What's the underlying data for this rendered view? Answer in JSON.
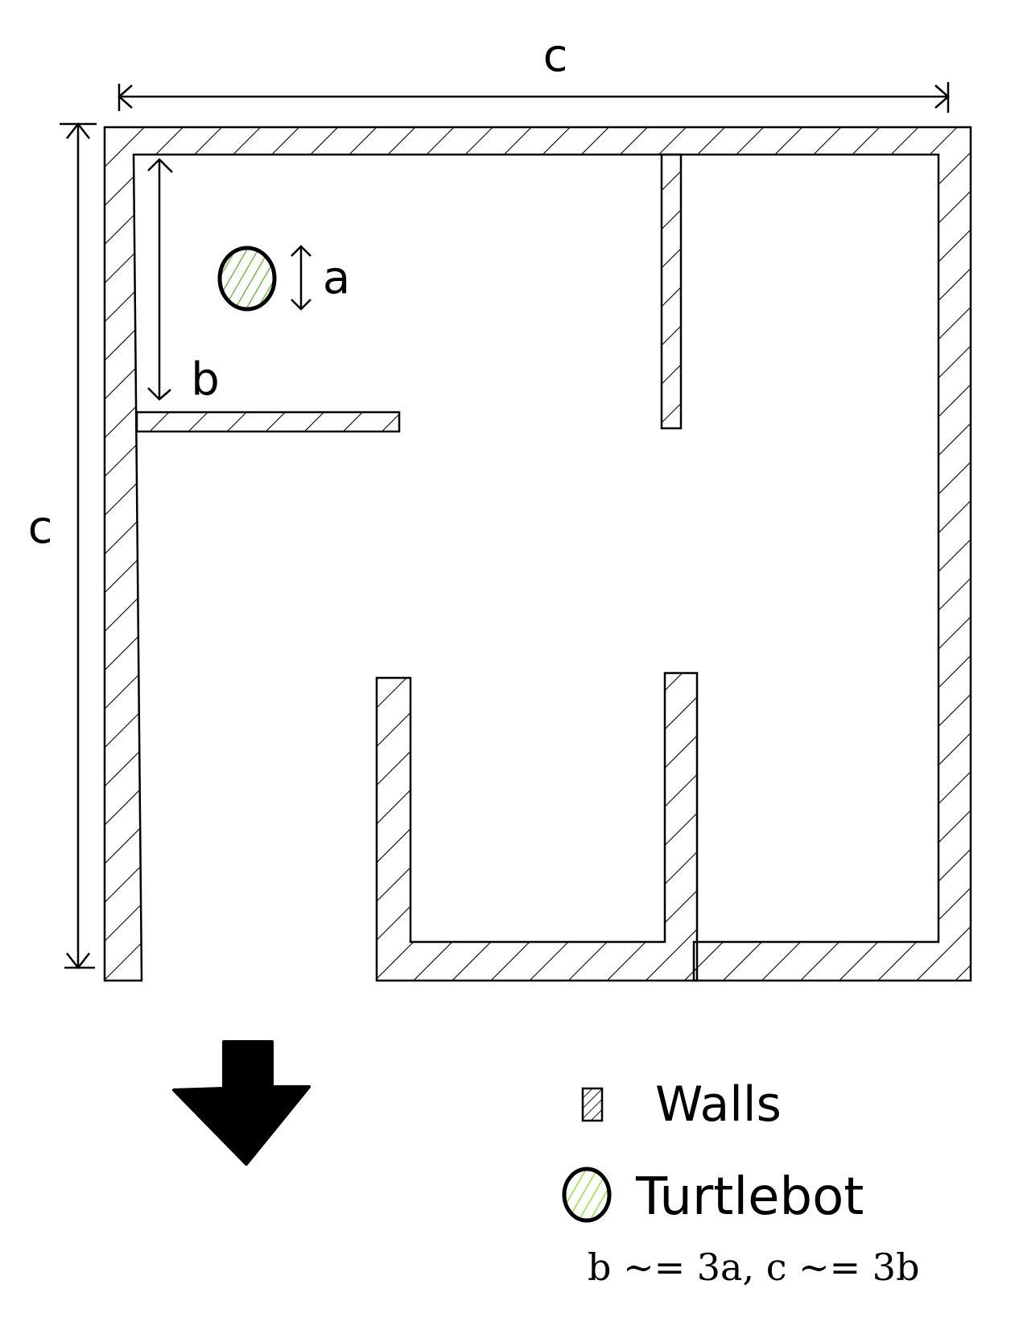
{
  "dimensions": {
    "top_label": "c",
    "left_label": "c",
    "robot_label": "a",
    "gap_label": "b"
  },
  "legend": {
    "walls_label": "Walls",
    "turtlebot_label": "Turtlebot"
  },
  "relation": "b ~= 3a, c ~= 3b",
  "colors": {
    "ink": "#000000",
    "turtlebot_fill": "#ffffff",
    "turtlebot_hatch": "#6cc04a",
    "legend_hatch": "#8ee83a",
    "background": "#ffffff"
  },
  "icons": {
    "exit_arrow": "down-arrow-icon"
  }
}
